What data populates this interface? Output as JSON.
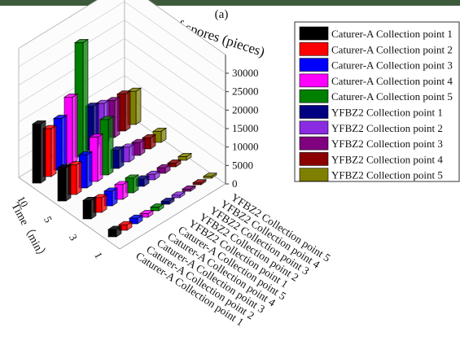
{
  "chart_data": {
    "type": "bar3d",
    "title": "(a)",
    "zlabel": "Number of spores (pieces)",
    "ylabel": "Time（min）",
    "categories": [
      "10",
      "5",
      "3",
      "1"
    ],
    "series": [
      {
        "name": "Caturer-A Collection point 1",
        "color": "#000000",
        "values": [
          16000,
          9000,
          5000,
          2000
        ]
      },
      {
        "name": "Caturer-A Collection point 2",
        "color": "#ff0000",
        "values": [
          13000,
          8000,
          4000,
          1500
        ]
      },
      {
        "name": "Caturer-A Collection point 3",
        "color": "#0000ff",
        "values": [
          14000,
          9000,
          4000,
          1500
        ]
      },
      {
        "name": "Caturer-A Collection point 4",
        "color": "#ff00ff",
        "values": [
          18000,
          12000,
          4000,
          1000
        ]
      },
      {
        "name": "Caturer-A Collection point 5",
        "color": "#008000",
        "values": [
          31000,
          15000,
          4000,
          1000
        ]
      },
      {
        "name": "YFBZ2 Collection point 1",
        "color": "#000080",
        "values": [
          12000,
          5000,
          2000,
          800
        ]
      },
      {
        "name": "YFBZ2 Collection point 2",
        "color": "#8a2be2",
        "values": [
          11000,
          4000,
          1500,
          700
        ]
      },
      {
        "name": "YFBZ2 Collection point 3",
        "color": "#800080",
        "values": [
          10000,
          3500,
          1500,
          600
        ]
      },
      {
        "name": "YFBZ2 Collection point 4",
        "color": "#8b0000",
        "values": [
          10000,
          3000,
          1000,
          500
        ]
      },
      {
        "name": "YFBZ2 Collection point 5",
        "color": "#808000",
        "values": [
          9000,
          3000,
          1000,
          500
        ]
      }
    ],
    "zlim": [
      0,
      35000
    ],
    "zticks": [
      0,
      5000,
      10000,
      15000,
      20000,
      25000,
      30000
    ],
    "grid": true
  }
}
